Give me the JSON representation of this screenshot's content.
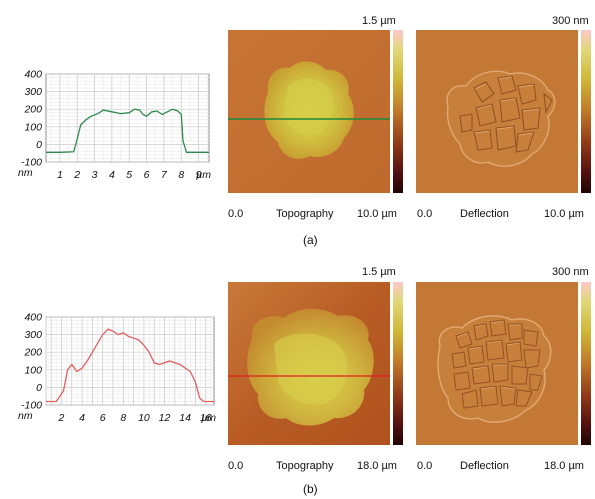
{
  "colorscale_gradient": [
    "#ffc8c8",
    "#c8d070",
    "#d0c040",
    "#c89030",
    "#b06020",
    "#803018",
    "#300808"
  ],
  "panels": [
    {
      "caption": "(a)",
      "topo": {
        "scale_max": "1.5 µm",
        "x_start": "0.0",
        "name": "Topography",
        "x_end": "10.0 µm",
        "line_color": "#1a8a3a"
      },
      "defl": {
        "scale_max": "300 nm",
        "x_start": "0.0",
        "name": "Deflection",
        "x_end": "10.0 µm"
      },
      "chart_data": {
        "type": "line",
        "color": "#2e8a4e",
        "y_ticks": [
          "400",
          "300",
          "200",
          "100",
          "0",
          "-100"
        ],
        "y_unit": "nm",
        "x_ticks": [
          "1",
          "2",
          "3",
          "4",
          "5",
          "6",
          "7",
          "8",
          "9"
        ],
        "x_unit": "µm",
        "ylim": [
          -100,
          400
        ],
        "xlim": [
          0.2,
          9.6
        ],
        "x": [
          0.2,
          1.0,
          1.8,
          2.0,
          2.2,
          2.5,
          2.8,
          3.2,
          3.5,
          4.0,
          4.5,
          5.0,
          5.3,
          5.6,
          5.8,
          6.0,
          6.3,
          6.6,
          6.9,
          7.2,
          7.5,
          7.8,
          8.0,
          8.1,
          8.3,
          9.0,
          9.6
        ],
        "y": [
          -45,
          -45,
          -42,
          30,
          110,
          140,
          160,
          175,
          195,
          185,
          175,
          180,
          200,
          195,
          170,
          160,
          185,
          190,
          170,
          185,
          200,
          190,
          170,
          20,
          -45,
          -45,
          -45
        ]
      }
    },
    {
      "caption": "(b)",
      "topo": {
        "scale_max": "1.5 µm",
        "x_start": "0.0",
        "name": "Topography",
        "x_end": "18.0 µm",
        "line_color": "#e02020"
      },
      "defl": {
        "scale_max": "300 nm",
        "x_start": "0.0",
        "name": "Deflection",
        "x_end": "18.0 µm"
      },
      "chart_data": {
        "type": "line",
        "color": "#e06060",
        "y_ticks": [
          "400",
          "300",
          "200",
          "100",
          "0",
          "-100"
        ],
        "y_unit": "nm",
        "x_ticks": [
          "2",
          "4",
          "6",
          "8",
          "10",
          "12",
          "14",
          "16"
        ],
        "x_unit": "µm",
        "ylim": [
          -100,
          400
        ],
        "xlim": [
          0.5,
          16.8
        ],
        "x": [
          0.5,
          1.5,
          2.2,
          2.6,
          3.0,
          3.5,
          4.0,
          4.5,
          5.0,
          5.5,
          6.0,
          6.5,
          7.0,
          7.5,
          8.0,
          8.5,
          9.0,
          9.5,
          10.0,
          10.5,
          11.0,
          11.5,
          12.0,
          12.5,
          13.0,
          13.5,
          14.0,
          14.5,
          15.0,
          15.4,
          15.8,
          16.8
        ],
        "y": [
          -80,
          -80,
          -20,
          100,
          130,
          90,
          110,
          150,
          200,
          250,
          300,
          330,
          320,
          300,
          310,
          290,
          280,
          270,
          240,
          200,
          140,
          130,
          140,
          150,
          140,
          130,
          110,
          90,
          30,
          -60,
          -80,
          -80
        ]
      }
    }
  ]
}
